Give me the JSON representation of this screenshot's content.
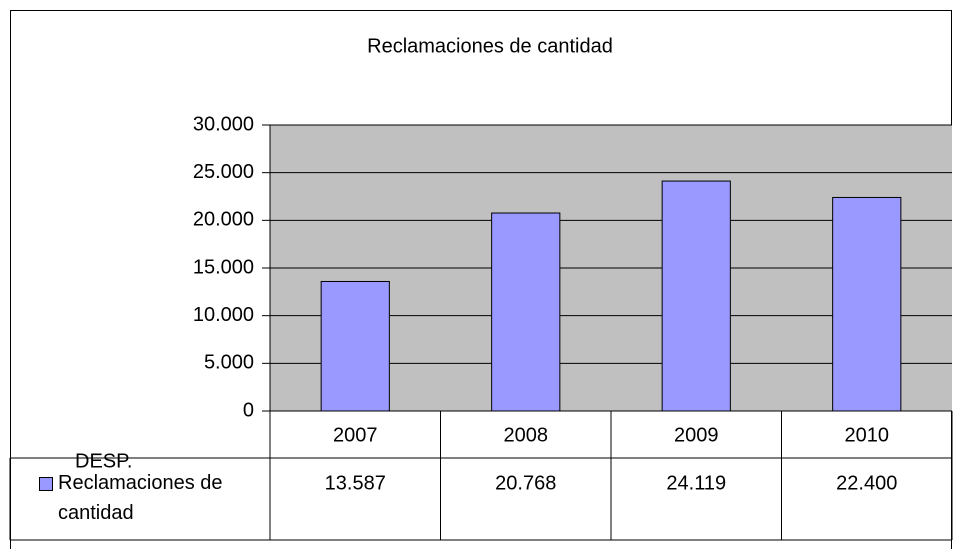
{
  "chart_data": {
    "type": "bar",
    "title": "Reclamaciones de cantidad",
    "categories": [
      "2007",
      "2008",
      "2009",
      "2010"
    ],
    "series": [
      {
        "name": "Reclamaciones de cantidad",
        "color": "#9999ff",
        "values": [
          13587,
          20768,
          24119,
          22400
        ],
        "value_labels": [
          "13.587",
          "20.768",
          "24.119",
          "22.400"
        ]
      }
    ],
    "ylim": [
      0,
      30000
    ],
    "yticks": [
      0,
      {
        "value": 5000,
        "label": "5.000"
      },
      {
        "value": 10000,
        "label": "10.000"
      },
      {
        "value": 15000,
        "label": "15.000"
      },
      {
        "value": 20000,
        "label": "20.000"
      },
      {
        "value": 25000,
        "label": "25.000"
      },
      {
        "value": 30000,
        "label": "30.000"
      }
    ],
    "grid": true,
    "plot_background": "#c0c0c0",
    "annotation": "DESP."
  }
}
